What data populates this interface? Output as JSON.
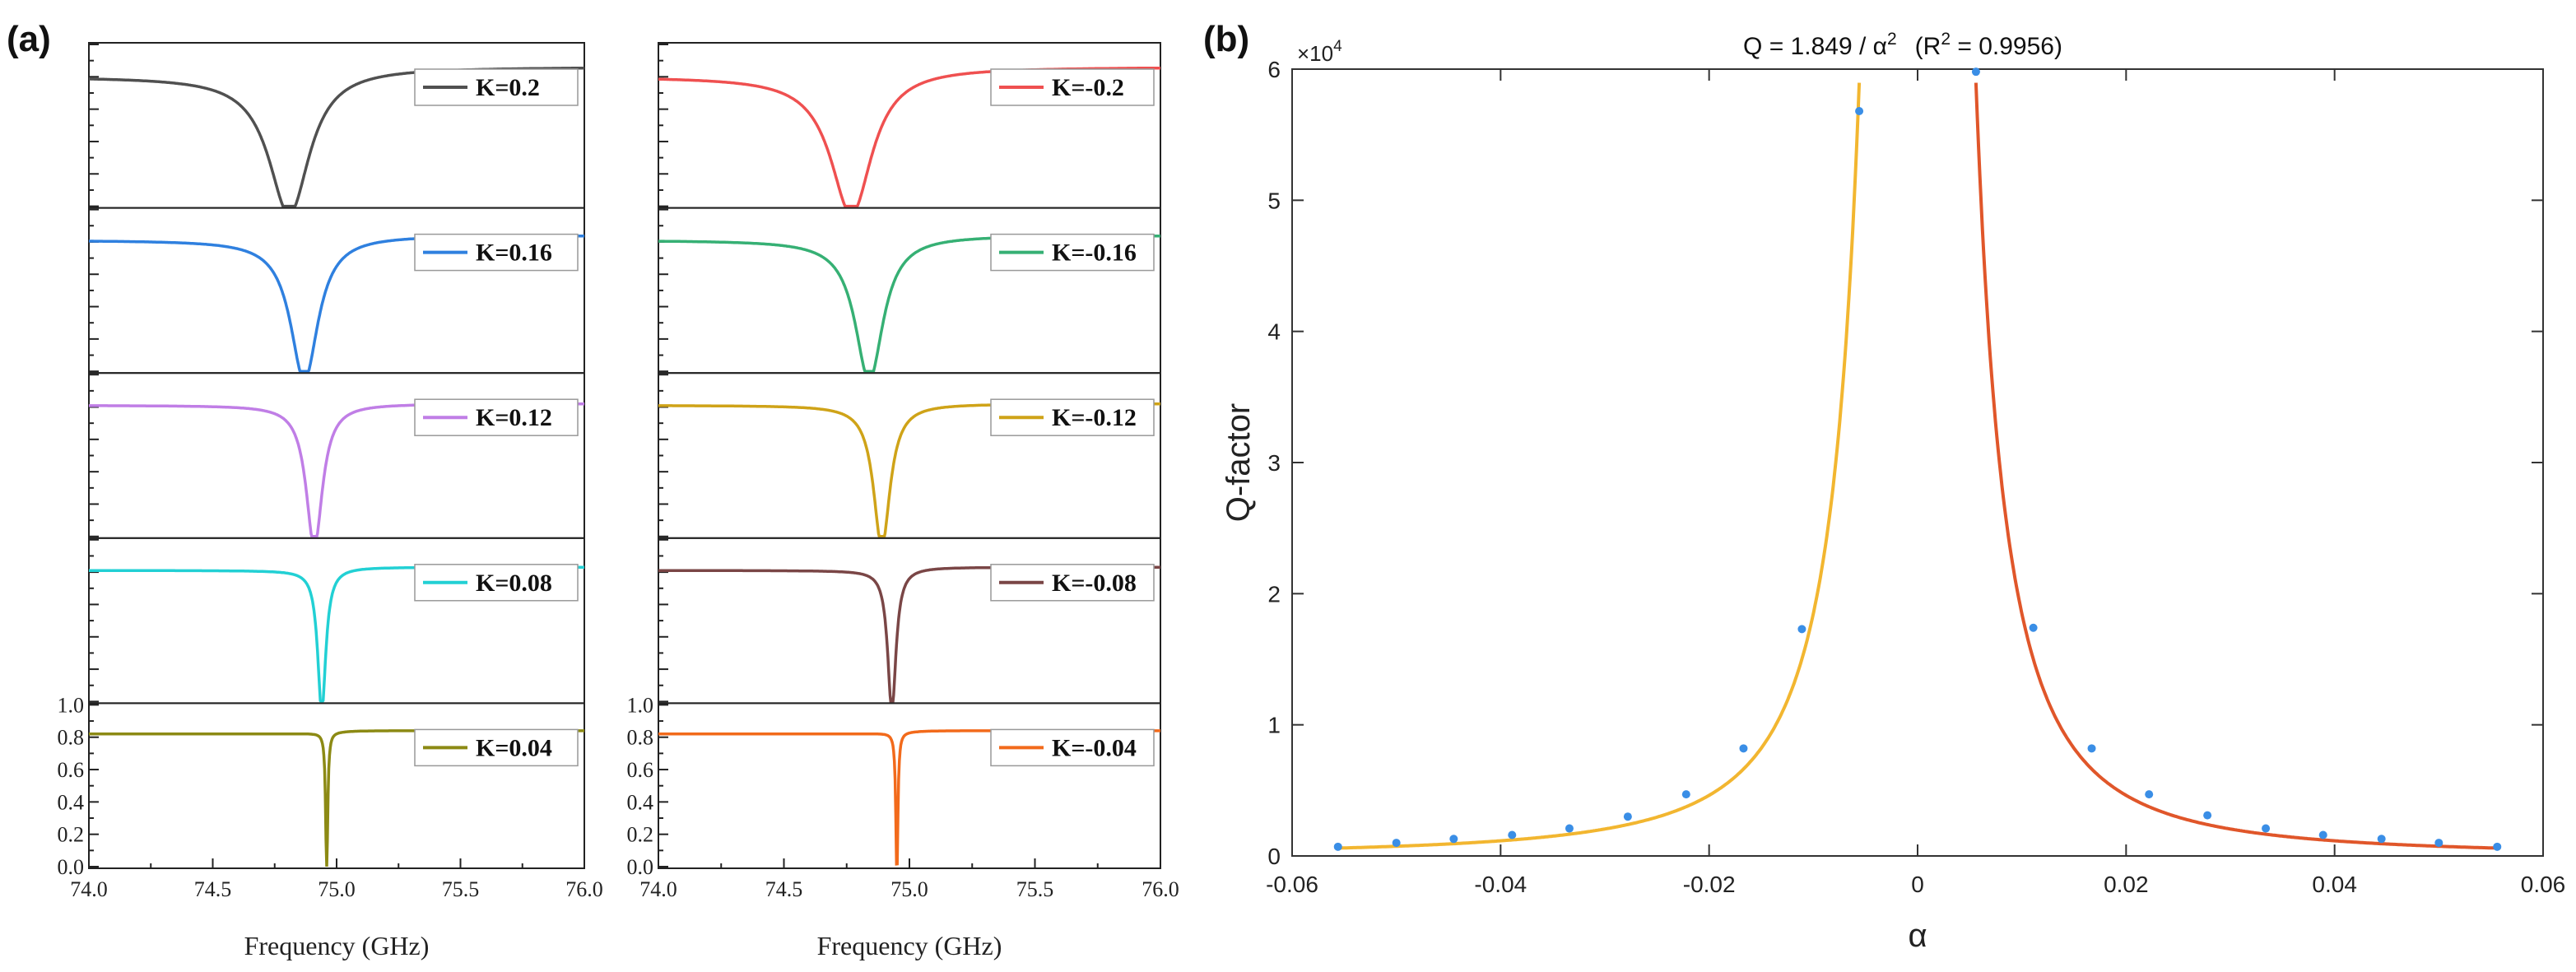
{
  "panel_labels": {
    "a": "(a)",
    "b": "(b)"
  },
  "chart_data": [
    {
      "type": "line",
      "panel": "(a) left column",
      "xlabel": "Frequency (GHz)",
      "xlim": [
        74.0,
        76.0
      ],
      "xticks": [
        "74.0",
        "74.5",
        "75.0",
        "75.5",
        "76.0"
      ],
      "ylim": [
        0.0,
        1.0
      ],
      "yticks": [
        "0.0",
        "0.2",
        "0.4",
        "0.6",
        "0.8",
        "1.0"
      ],
      "series": [
        {
          "name": "K=0.2",
          "color": "#505050",
          "center": 74.81,
          "halfwidth": 0.1,
          "depth": 0.88,
          "baseline_left": 0.8,
          "baseline_right": 0.86
        },
        {
          "name": "K=0.16",
          "color": "#2f80df",
          "center": 74.87,
          "halfwidth": 0.068,
          "depth": 0.88,
          "baseline_left": 0.81,
          "baseline_right": 0.84
        },
        {
          "name": "K=0.12",
          "color": "#c07ee6",
          "center": 74.91,
          "halfwidth": 0.04,
          "depth": 0.88,
          "baseline_left": 0.81,
          "baseline_right": 0.82
        },
        {
          "name": "K=0.08",
          "color": "#22d0d4",
          "center": 74.94,
          "halfwidth": 0.02,
          "depth": 0.88,
          "baseline_left": 0.81,
          "baseline_right": 0.83
        },
        {
          "name": "K=0.04",
          "color": "#8c8a14",
          "center": 74.96,
          "halfwidth": 0.005,
          "depth": 0.88,
          "baseline_left": 0.82,
          "baseline_right": 0.84
        }
      ]
    },
    {
      "type": "line",
      "panel": "(a) right column",
      "xlabel": "Frequency (GHz)",
      "xlim": [
        74.0,
        76.0
      ],
      "xticks": [
        "74.0",
        "74.5",
        "75.0",
        "75.5",
        "76.0"
      ],
      "ylim": [
        0.0,
        1.0
      ],
      "yticks": [
        "0.0",
        "0.2",
        "0.4",
        "0.6",
        "0.8",
        "1.0"
      ],
      "series": [
        {
          "name": "K=-0.2",
          "color": "#ef5050",
          "center": 74.77,
          "halfwidth": 0.1,
          "depth": 0.88,
          "baseline_left": 0.8,
          "baseline_right": 0.86
        },
        {
          "name": "K=-0.16",
          "color": "#36b074",
          "center": 74.84,
          "halfwidth": 0.068,
          "depth": 0.88,
          "baseline_left": 0.81,
          "baseline_right": 0.84
        },
        {
          "name": "K=-0.12",
          "color": "#cfa318",
          "center": 74.89,
          "halfwidth": 0.04,
          "depth": 0.88,
          "baseline_left": 0.81,
          "baseline_right": 0.82
        },
        {
          "name": "K=-0.08",
          "color": "#7a4646",
          "center": 74.93,
          "halfwidth": 0.02,
          "depth": 0.88,
          "baseline_left": 0.81,
          "baseline_right": 0.83
        },
        {
          "name": "K=-0.04",
          "color": "#f26a1b",
          "center": 74.95,
          "halfwidth": 0.005,
          "depth": 0.88,
          "baseline_left": 0.82,
          "baseline_right": 0.84
        }
      ]
    },
    {
      "type": "scatter",
      "panel": "(b)",
      "title": "Q = 1.849 / α",
      "title_exp": "2",
      "title_r_open": "(R",
      "title_r_exp": "2",
      "title_r_close": " = 0.9956)",
      "xlabel": "α",
      "ylabel": "Q-factor",
      "xlim": [
        -0.06,
        0.06
      ],
      "xticks": [
        "-0.06",
        "-0.04",
        "-0.02",
        "0",
        "0.02",
        "0.04",
        "0.06"
      ],
      "ylim": [
        0,
        6
      ],
      "yticks": [
        "0",
        "1",
        "2",
        "3",
        "4",
        "5",
        "6"
      ],
      "y_multiplier_base": "×10",
      "y_multiplier_exp": "4",
      "fit": {
        "coefficient": 1.849,
        "scale": 10000,
        "left_color": "#f2b630",
        "right_color": "#e0562a",
        "left_alpha_range": [
          -0.0555,
          -0.0056
        ],
        "right_alpha_range": [
          0.0056,
          0.0555
        ]
      },
      "points_color": "#3a8ee6",
      "points": [
        {
          "x": -0.0556,
          "y": 0.07
        },
        {
          "x": -0.05,
          "y": 0.1
        },
        {
          "x": -0.0445,
          "y": 0.13
        },
        {
          "x": -0.0389,
          "y": 0.16
        },
        {
          "x": -0.0334,
          "y": 0.21
        },
        {
          "x": -0.0278,
          "y": 0.3
        },
        {
          "x": -0.0222,
          "y": 0.47
        },
        {
          "x": -0.0167,
          "y": 0.82
        },
        {
          "x": -0.0111,
          "y": 1.73
        },
        {
          "x": -0.0056,
          "y": 5.68
        },
        {
          "x": 0.0056,
          "y": 5.98
        },
        {
          "x": 0.0111,
          "y": 1.74
        },
        {
          "x": 0.0167,
          "y": 0.82
        },
        {
          "x": 0.0222,
          "y": 0.47
        },
        {
          "x": 0.0278,
          "y": 0.31
        },
        {
          "x": 0.0334,
          "y": 0.21
        },
        {
          "x": 0.0389,
          "y": 0.16
        },
        {
          "x": 0.0445,
          "y": 0.13
        },
        {
          "x": 0.05,
          "y": 0.1
        },
        {
          "x": 0.0556,
          "y": 0.07
        }
      ]
    }
  ]
}
